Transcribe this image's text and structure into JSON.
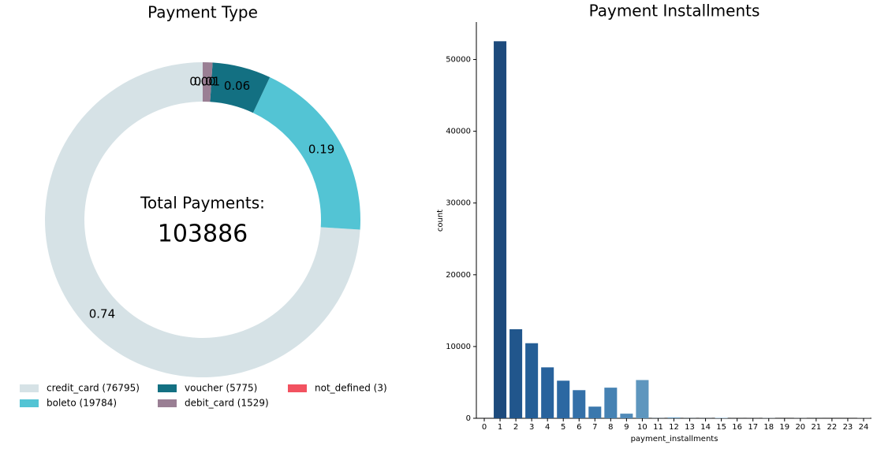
{
  "chart_data": [
    {
      "type": "pie",
      "title": "Payment Type",
      "categories": [
        "credit_card (76795)",
        "boleto (19784)",
        "voucher (5775)",
        "debit_card (1529)",
        "not_defined (3)"
      ],
      "values": [
        0.74,
        0.19,
        0.06,
        0.01,
        0.0
      ],
      "value_labels": [
        "0.74",
        "0.19",
        "0.06",
        "0.01",
        "0.00"
      ],
      "colors": [
        "#d6e2e6",
        "#53c4d4",
        "#137082",
        "#9a7f94",
        "#f25260"
      ],
      "center_title": "Total Payments:",
      "total": 103886
    },
    {
      "type": "bar",
      "title": "Payment Installments",
      "xlabel": "payment_installments",
      "ylabel": "count",
      "categories": [
        "0",
        "1",
        "2",
        "3",
        "4",
        "5",
        "6",
        "7",
        "8",
        "9",
        "10",
        "11",
        "12",
        "13",
        "14",
        "15",
        "16",
        "17",
        "18",
        "19",
        "20",
        "21",
        "22",
        "23",
        "24"
      ],
      "values": [
        2,
        52546,
        12413,
        10461,
        7098,
        5239,
        3920,
        1626,
        4268,
        644,
        5328,
        23,
        133,
        16,
        15,
        74,
        5,
        8,
        27,
        0,
        17,
        3,
        1,
        1,
        18
      ],
      "colors": [
        "#1a3f6e",
        "#1d4a7c",
        "#21568c",
        "#245e96",
        "#28629c",
        "#2c68a2",
        "#3470a8",
        "#3b78ad",
        "#4682b3",
        "#508ab8",
        "#5e96be",
        "#6a9ec3",
        "#76a6c8",
        "#82afcd",
        "#8db7d2",
        "#97bed6",
        "#a1c5da",
        "#abcbde",
        "#b3d0e1",
        "#bbd5e4",
        "#c2d9e6",
        "#c8dde9",
        "#cde0eb",
        "#d2e3ed",
        "#d7e7ef"
      ],
      "ylim": [
        0,
        55000
      ],
      "yticks": [
        0,
        10000,
        20000,
        30000,
        40000,
        50000
      ],
      "grid": false
    }
  ]
}
